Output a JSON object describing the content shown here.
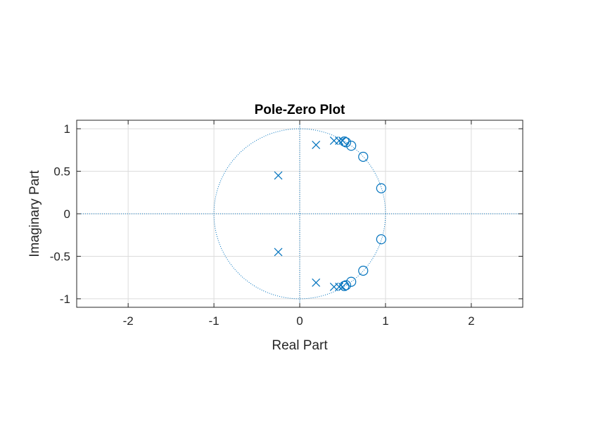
{
  "chart_data": {
    "type": "scatter",
    "title": "Pole-Zero Plot",
    "xlabel": "Real Part",
    "ylabel": "Imaginary Part",
    "xlim": [
      -2.6,
      2.6
    ],
    "ylim": [
      -1.1,
      1.1
    ],
    "xticks": [
      -2,
      -1,
      0,
      1,
      2
    ],
    "xtick_labels": [
      "-2",
      "-1",
      "0",
      "1",
      "2"
    ],
    "yticks": [
      -1,
      -0.5,
      0,
      0.5,
      1
    ],
    "ytick_labels": [
      "-1",
      "-0.5",
      "0",
      "0.5",
      "1"
    ],
    "grid": true,
    "unit_circle": true,
    "color": "#0072BD",
    "series": [
      {
        "marker": "x",
        "points": [
          {
            "x": -0.25,
            "y": 0.45
          },
          {
            "x": -0.25,
            "y": -0.45
          },
          {
            "x": 0.19,
            "y": 0.81
          },
          {
            "x": 0.19,
            "y": -0.81
          },
          {
            "x": 0.4,
            "y": 0.86
          },
          {
            "x": 0.4,
            "y": -0.86
          },
          {
            "x": 0.46,
            "y": 0.86
          },
          {
            "x": 0.46,
            "y": -0.86
          },
          {
            "x": 0.5,
            "y": 0.86
          },
          {
            "x": 0.5,
            "y": -0.86
          }
        ]
      },
      {
        "marker": "o",
        "points": [
          {
            "x": 0.52,
            "y": 0.85
          },
          {
            "x": 0.52,
            "y": -0.85
          },
          {
            "x": 0.54,
            "y": 0.84
          },
          {
            "x": 0.54,
            "y": -0.84
          },
          {
            "x": 0.6,
            "y": 0.8
          },
          {
            "x": 0.6,
            "y": -0.8
          },
          {
            "x": 0.74,
            "y": 0.67
          },
          {
            "x": 0.74,
            "y": -0.67
          },
          {
            "x": 0.95,
            "y": 0.3
          },
          {
            "x": 0.95,
            "y": -0.3
          }
        ]
      }
    ]
  }
}
